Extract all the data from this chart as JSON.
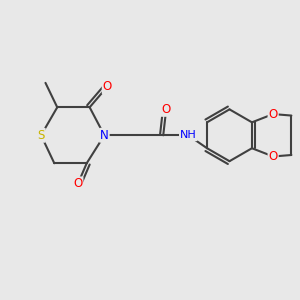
{
  "background_color": "#e8e8e8",
  "atom_colors": {
    "S": "#c8b400",
    "N": "#0000ff",
    "O": "#ff0000",
    "C": "#404040",
    "H": "#404040"
  },
  "bond_color": "#404040",
  "bond_width": 1.5,
  "figsize": [
    3.0,
    3.0
  ],
  "dpi": 100
}
